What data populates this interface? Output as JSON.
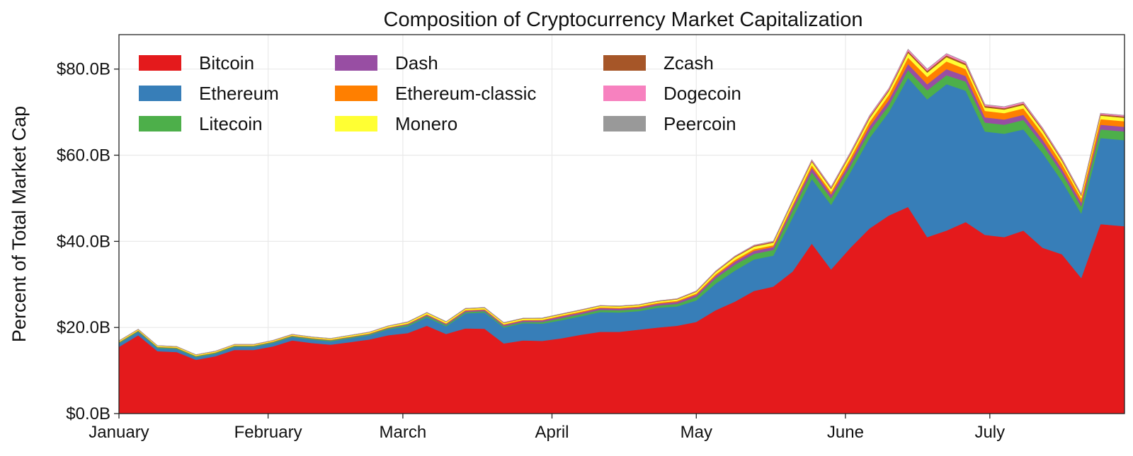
{
  "chart_data": {
    "type": "area",
    "stacked": true,
    "title": "Composition of Cryptocurrency Market Capitalization",
    "ylabel": "Percent of Total Market Cap",
    "xlabel": "",
    "ylim": [
      0,
      88
    ],
    "xlim": [
      "2017-01-01",
      "2017-07-29"
    ],
    "grid": true,
    "legend": {
      "position": "top-left",
      "columns": 3
    },
    "y_ticks": [
      {
        "value": 0,
        "label": "$0.0B"
      },
      {
        "value": 20,
        "label": "$20.0B"
      },
      {
        "value": 40,
        "label": "$40.0B"
      },
      {
        "value": 60,
        "label": "$60.0B"
      },
      {
        "value": 80,
        "label": "$80.0B"
      }
    ],
    "x_ticks": [
      {
        "value": "2017-01-01",
        "label": "January"
      },
      {
        "value": "2017-02-01",
        "label": "February"
      },
      {
        "value": "2017-03-01",
        "label": "March"
      },
      {
        "value": "2017-04-01",
        "label": "April"
      },
      {
        "value": "2017-05-01",
        "label": "May"
      },
      {
        "value": "2017-06-01",
        "label": "June"
      },
      {
        "value": "2017-07-01",
        "label": "July"
      }
    ],
    "x": [
      "2017-01-01",
      "2017-01-05",
      "2017-01-09",
      "2017-01-13",
      "2017-01-17",
      "2017-01-21",
      "2017-01-25",
      "2017-01-29",
      "2017-02-02",
      "2017-02-06",
      "2017-02-10",
      "2017-02-14",
      "2017-02-18",
      "2017-02-22",
      "2017-02-26",
      "2017-03-02",
      "2017-03-06",
      "2017-03-10",
      "2017-03-14",
      "2017-03-18",
      "2017-03-22",
      "2017-03-26",
      "2017-03-30",
      "2017-04-03",
      "2017-04-07",
      "2017-04-11",
      "2017-04-15",
      "2017-04-19",
      "2017-04-23",
      "2017-04-27",
      "2017-05-01",
      "2017-05-05",
      "2017-05-09",
      "2017-05-13",
      "2017-05-17",
      "2017-05-21",
      "2017-05-25",
      "2017-05-29",
      "2017-06-02",
      "2017-06-06",
      "2017-06-10",
      "2017-06-12",
      "2017-06-14",
      "2017-06-18",
      "2017-06-22",
      "2017-06-26",
      "2017-06-30",
      "2017-07-04",
      "2017-07-08",
      "2017-07-12",
      "2017-07-16",
      "2017-07-20",
      "2017-07-24",
      "2017-07-29"
    ],
    "series": [
      {
        "name": "Bitcoin",
        "color": "#e41a1c",
        "values": [
          15.5,
          18.2,
          14.5,
          14.3,
          12.5,
          13.3,
          14.8,
          14.8,
          15.6,
          17.0,
          16.4,
          16.0,
          16.6,
          17.2,
          18.2,
          18.7,
          20.4,
          18.5,
          19.8,
          19.7,
          16.3,
          17.0,
          16.9,
          17.5,
          18.3,
          19.0,
          19.0,
          19.5,
          20.0,
          20.4,
          21.3,
          24.0,
          26.0,
          28.5,
          29.5,
          33.0,
          39.5,
          33.5,
          38.5,
          43.0,
          46.0,
          47.0,
          48.0,
          41.0,
          42.5,
          44.5,
          41.5,
          41.0,
          42.5,
          38.5,
          37.0,
          31.5,
          44.0,
          43.5
        ]
      },
      {
        "name": "Ethereum",
        "color": "#377eb8",
        "values": [
          0.8,
          0.8,
          0.7,
          0.7,
          0.6,
          0.6,
          0.7,
          0.7,
          0.8,
          0.8,
          0.8,
          0.8,
          0.9,
          1.0,
          1.4,
          1.6,
          2.0,
          1.8,
          3.5,
          3.8,
          3.7,
          4.0,
          4.0,
          4.2,
          4.3,
          4.6,
          4.5,
          4.3,
          4.6,
          4.5,
          5.0,
          6.2,
          7.2,
          7.3,
          7.2,
          12.5,
          15.0,
          15.0,
          17.5,
          21.0,
          24.0,
          27.0,
          30.0,
          32.0,
          34.0,
          30.5,
          24.0,
          24.0,
          23.5,
          22.0,
          17.0,
          15.0,
          20.0,
          20.0
        ]
      },
      {
        "name": "Litecoin",
        "color": "#4daf4a",
        "values": [
          0.2,
          0.2,
          0.2,
          0.2,
          0.2,
          0.2,
          0.2,
          0.2,
          0.2,
          0.2,
          0.2,
          0.2,
          0.2,
          0.2,
          0.2,
          0.3,
          0.3,
          0.3,
          0.3,
          0.3,
          0.3,
          0.3,
          0.4,
          0.5,
          0.5,
          0.5,
          0.5,
          0.5,
          0.5,
          0.6,
          0.8,
          1.2,
          1.4,
          1.3,
          1.3,
          1.6,
          1.6,
          1.5,
          1.5,
          1.6,
          1.6,
          1.7,
          1.8,
          2.1,
          2.1,
          2.1,
          2.1,
          2.1,
          2.2,
          2.0,
          1.8,
          1.6,
          2.0,
          2.0
        ]
      },
      {
        "name": "Dash",
        "color": "#984ea3",
        "values": [
          0.06,
          0.06,
          0.06,
          0.06,
          0.06,
          0.06,
          0.06,
          0.06,
          0.07,
          0.08,
          0.08,
          0.09,
          0.1,
          0.12,
          0.14,
          0.2,
          0.25,
          0.25,
          0.3,
          0.3,
          0.3,
          0.32,
          0.35,
          0.4,
          0.4,
          0.4,
          0.4,
          0.4,
          0.42,
          0.45,
          0.5,
          0.6,
          0.7,
          0.7,
          0.7,
          0.9,
          1.0,
          0.9,
          1.0,
          1.1,
          1.2,
          1.3,
          1.4,
          1.4,
          1.4,
          1.3,
          1.2,
          1.2,
          1.2,
          1.1,
          1.0,
          0.9,
          1.1,
          1.1
        ]
      },
      {
        "name": "Ethereum-classic",
        "color": "#ff7f00",
        "values": [
          0.08,
          0.08,
          0.07,
          0.07,
          0.07,
          0.07,
          0.07,
          0.07,
          0.08,
          0.08,
          0.08,
          0.08,
          0.08,
          0.09,
          0.1,
          0.12,
          0.14,
          0.14,
          0.15,
          0.15,
          0.15,
          0.15,
          0.16,
          0.18,
          0.2,
          0.2,
          0.2,
          0.2,
          0.22,
          0.25,
          0.3,
          0.35,
          0.4,
          0.4,
          0.4,
          0.5,
          0.6,
          0.6,
          0.8,
          1.0,
          1.2,
          1.3,
          1.5,
          1.7,
          1.8,
          1.6,
          1.5,
          1.5,
          1.5,
          1.3,
          1.2,
          1.0,
          1.3,
          1.3
        ]
      },
      {
        "name": "Monero",
        "color": "#ffff33",
        "values": [
          0.2,
          0.2,
          0.2,
          0.2,
          0.2,
          0.2,
          0.2,
          0.2,
          0.2,
          0.2,
          0.2,
          0.22,
          0.24,
          0.26,
          0.28,
          0.3,
          0.32,
          0.3,
          0.3,
          0.3,
          0.3,
          0.3,
          0.3,
          0.3,
          0.3,
          0.3,
          0.3,
          0.3,
          0.32,
          0.34,
          0.4,
          0.5,
          0.6,
          0.6,
          0.6,
          0.7,
          0.8,
          0.7,
          0.8,
          0.9,
          0.9,
          1.0,
          1.1,
          1.0,
          1.0,
          0.9,
          0.8,
          0.8,
          0.8,
          0.8,
          0.7,
          0.6,
          0.8,
          0.8
        ]
      },
      {
        "name": "Zcash",
        "color": "#a65628",
        "values": [
          0.05,
          0.05,
          0.05,
          0.05,
          0.05,
          0.05,
          0.05,
          0.05,
          0.05,
          0.05,
          0.05,
          0.05,
          0.05,
          0.05,
          0.05,
          0.06,
          0.06,
          0.06,
          0.07,
          0.07,
          0.07,
          0.07,
          0.08,
          0.08,
          0.08,
          0.08,
          0.08,
          0.08,
          0.09,
          0.1,
          0.12,
          0.15,
          0.18,
          0.2,
          0.2,
          0.22,
          0.25,
          0.25,
          0.28,
          0.3,
          0.3,
          0.35,
          0.4,
          0.4,
          0.4,
          0.4,
          0.35,
          0.35,
          0.35,
          0.33,
          0.3,
          0.25,
          0.3,
          0.3
        ]
      },
      {
        "name": "Dogecoin",
        "color": "#f781bf",
        "values": [
          0.02,
          0.02,
          0.02,
          0.02,
          0.02,
          0.02,
          0.02,
          0.02,
          0.02,
          0.02,
          0.02,
          0.02,
          0.02,
          0.02,
          0.03,
          0.03,
          0.03,
          0.03,
          0.03,
          0.03,
          0.03,
          0.03,
          0.03,
          0.03,
          0.03,
          0.03,
          0.03,
          0.03,
          0.04,
          0.05,
          0.06,
          0.08,
          0.1,
          0.12,
          0.12,
          0.15,
          0.2,
          0.2,
          0.25,
          0.3,
          0.3,
          0.35,
          0.4,
          0.4,
          0.4,
          0.35,
          0.3,
          0.3,
          0.3,
          0.28,
          0.25,
          0.2,
          0.25,
          0.25
        ]
      },
      {
        "name": "Peercoin",
        "color": "#999999",
        "values": [
          0.01,
          0.01,
          0.01,
          0.01,
          0.01,
          0.01,
          0.01,
          0.01,
          0.01,
          0.01,
          0.01,
          0.01,
          0.01,
          0.01,
          0.01,
          0.01,
          0.01,
          0.01,
          0.01,
          0.01,
          0.01,
          0.01,
          0.01,
          0.01,
          0.01,
          0.01,
          0.01,
          0.01,
          0.01,
          0.01,
          0.02,
          0.02,
          0.02,
          0.02,
          0.02,
          0.03,
          0.03,
          0.03,
          0.03,
          0.03,
          0.03,
          0.03,
          0.04,
          0.04,
          0.04,
          0.04,
          0.03,
          0.03,
          0.03,
          0.03,
          0.03,
          0.02,
          0.03,
          0.03
        ]
      }
    ]
  }
}
